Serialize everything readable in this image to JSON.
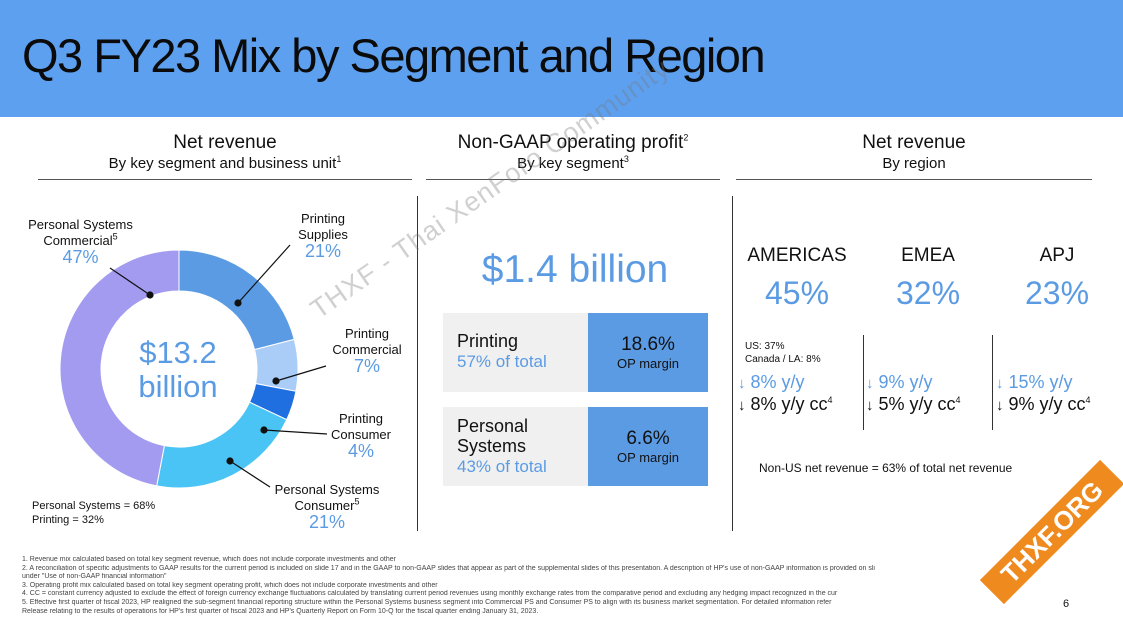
{
  "title": "Q3 FY23 Mix by Segment and Region",
  "left": {
    "heading": "Net revenue",
    "subheading": "By key segment and business unit",
    "subheading_sup": "1",
    "center_value_line1": "$13.2",
    "center_value_line2": "billion",
    "segments": [
      {
        "name_line1": "Personal Systems",
        "name_line2": "Commercial",
        "sup": "5",
        "pct": "47%",
        "value": 47,
        "color": "#a29bf0"
      },
      {
        "name_line1": "Printing",
        "name_line2": "Supplies",
        "sup": "",
        "pct": "21%",
        "value": 21,
        "color": "#5b9be3"
      },
      {
        "name_line1": "Printing",
        "name_line2": "Commercial",
        "sup": "",
        "pct": "7%",
        "value": 7,
        "color": "#a9cdf6"
      },
      {
        "name_line1": "Printing",
        "name_line2": "Consumer",
        "sup": "",
        "pct": "4%",
        "value": 4,
        "color": "#1f6fe0"
      },
      {
        "name_line1": "Personal Systems",
        "name_line2": "Consumer",
        "sup": "5",
        "pct": "21%",
        "value": 21,
        "color": "#4ac4f4"
      }
    ],
    "split_line1": "Personal Systems = 68%",
    "split_line2": "Printing = 32%"
  },
  "middle": {
    "heading": "Non-GAAP operating profit",
    "heading_sup": "2",
    "subheading": "By key segment",
    "subheading_sup": "3",
    "total": "$1.4 billion",
    "segments": [
      {
        "name_line1": "Printing",
        "name_line2": "",
        "share": "57% of total",
        "margin_value": "18.6%",
        "margin_label": "OP margin"
      },
      {
        "name_line1": "Personal",
        "name_line2": "Systems",
        "share": "43% of total",
        "margin_value": "6.6%",
        "margin_label": "OP margin"
      }
    ]
  },
  "right": {
    "heading": "Net revenue",
    "subheading": "By region",
    "regions": [
      {
        "name": "AMERICAS",
        "pct": "45%",
        "yy": "8% y/y",
        "cc": "8% y/y cc",
        "cc_sup": "4"
      },
      {
        "name": "EMEA",
        "pct": "32%",
        "yy": "9% y/y",
        "cc": "5% y/y cc",
        "cc_sup": "4"
      },
      {
        "name": "APJ",
        "pct": "23%",
        "yy": "15% y/y",
        "cc": "9% y/y cc",
        "cc_sup": "4"
      }
    ],
    "americas_detail_line1": "US: 37%",
    "americas_detail_line2": "Canada / LA: 8%",
    "non_us": "Non-US net revenue = 63% of total net revenue"
  },
  "footnotes": [
    "1.  Revenue mix calculated based on total key segment revenue, which does not include corporate investments and other",
    "2.  A reconciliation of specific adjustments to GAAP results for the current period is included on slide 17 and in the GAAP to non-GAAP slides that appear as part of the supplemental slides of this presentation. A description of HP's use of non-GAAP information is provided on sli",
    "     under \"Use of non-GAAP financial information\"",
    "3.  Operating profit mix calculated based on total key segment operating profit, which does not include corporate investments and other",
    "4.  CC = constant currency adjusted to exclude the effect of foreign currency exchange fluctuations calculated by translating current period revenues using monthly exchange rates from the comparative period and excluding any hedging impact recognized in the cur",
    "5.  Effective first quarter of fiscal 2023, HP realigned the sub-segment financial reporting structure within the Personal Systems business segment into Commercial PS and Consumer PS to align with its business market segmentation. For detailed information refer",
    "     Release relating to the results of operations for HP's first quarter of fiscal 2023 and HP's Quarterly Report on Form 10-Q for the fiscal quarter ending January 31, 2023."
  ],
  "page_number": "6",
  "watermark": "THXF - Thai XenForo Community",
  "badge": "THXF.ORG",
  "arrow_glyphs": {
    "down_light": "↓",
    "down_dark": "↓"
  }
}
